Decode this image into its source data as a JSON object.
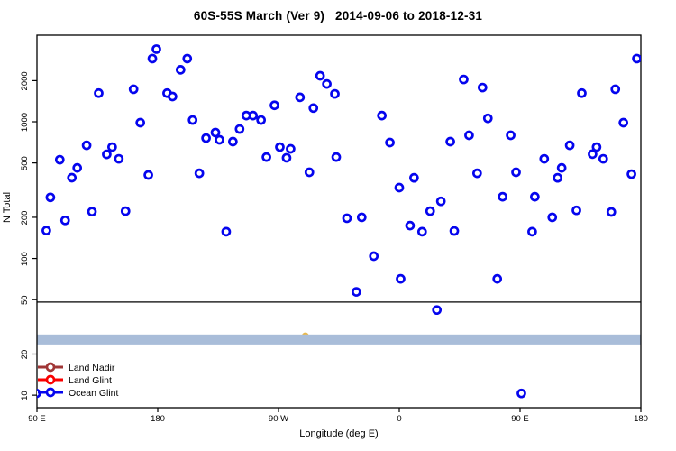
{
  "page": {
    "background": "#ffffff"
  },
  "chart_data": {
    "type": "scatter",
    "title": "60S-55S March (Ver 9)   2014-09-06 to 2018-12-31",
    "xlabel": "Longitude (deg E)",
    "ylabel": "N Total",
    "x_scale": "linear",
    "y_scale": "log",
    "xlim": [
      90,
      540
    ],
    "ylim": [
      8.1,
      4300
    ],
    "grid": false,
    "x_ticks": [
      {
        "value": 90,
        "label": "90 E"
      },
      {
        "value": 180,
        "label": "180"
      },
      {
        "value": 270,
        "label": "90 W"
      },
      {
        "value": 360,
        "label": "0"
      },
      {
        "value": 450,
        "label": "90 E"
      },
      {
        "value": 540,
        "label": "180"
      }
    ],
    "y_ticks": [
      {
        "value": 10,
        "label": "10"
      },
      {
        "value": 20,
        "label": "20"
      },
      {
        "value": 50,
        "label": "50"
      },
      {
        "value": 100,
        "label": "100"
      },
      {
        "value": 200,
        "label": "200"
      },
      {
        "value": 500,
        "label": "500"
      },
      {
        "value": 1000,
        "label": "1000"
      },
      {
        "value": 2000,
        "label": "2000"
      }
    ],
    "reference_line": {
      "y": 48,
      "color": "#2a2a2a"
    },
    "band": {
      "y_from": 23.5,
      "y_to": 27.8,
      "color": "#a9bdd9"
    },
    "artifact_points": [
      {
        "x": 290,
        "y": 27,
        "color": "#e8b84b"
      }
    ],
    "legend": {
      "position": "bottom-left",
      "items": [
        {
          "label": "Land Nadir",
          "color": "#a03636"
        },
        {
          "label": "Land Glint",
          "color": "#fa0000"
        },
        {
          "label": "Ocean Glint",
          "color": "#0505ee"
        }
      ]
    },
    "series": [
      {
        "name": "Ocean Glint",
        "marker": "open-circle",
        "color": "#0505ee",
        "points": [
          [
            179,
            3400
          ],
          [
            176,
            2900
          ],
          [
            202,
            2900
          ],
          [
            197,
            2400
          ],
          [
            301,
            2170
          ],
          [
            306,
            1890
          ],
          [
            312,
            1600
          ],
          [
            136,
            1620
          ],
          [
            162,
            1730
          ],
          [
            187,
            1620
          ],
          [
            191,
            1530
          ],
          [
            286,
            1510
          ],
          [
            296,
            1260
          ],
          [
            267,
            1320
          ],
          [
            167,
            985
          ],
          [
            206,
            1030
          ],
          [
            257,
            1030
          ],
          [
            251,
            1110
          ],
          [
            246,
            1110
          ],
          [
            241,
            885
          ],
          [
            223,
            834
          ],
          [
            216,
            760
          ],
          [
            226,
            738
          ],
          [
            236,
            716
          ],
          [
            127,
            673
          ],
          [
            146,
            653
          ],
          [
            142,
            578
          ],
          [
            151,
            536
          ],
          [
            107,
            528
          ],
          [
            120,
            460
          ],
          [
            116,
            390
          ],
          [
            173,
            408
          ],
          [
            211,
            420
          ],
          [
            271,
            653
          ],
          [
            279,
            634
          ],
          [
            276,
            545
          ],
          [
            261,
            552
          ],
          [
            313,
            552
          ],
          [
            293,
            427
          ],
          [
            100,
            280
          ],
          [
            111,
            190
          ],
          [
            131,
            220
          ],
          [
            156,
            222
          ],
          [
            537,
            2900
          ],
          [
            408,
            2040
          ],
          [
            422,
            1780
          ],
          [
            496,
            1620
          ],
          [
            521,
            1730
          ],
          [
            347,
            1110
          ],
          [
            426,
            1060
          ],
          [
            527,
            985
          ],
          [
            353,
            705
          ],
          [
            398,
            716
          ],
          [
            412,
            796
          ],
          [
            443,
            796
          ],
          [
            487,
            673
          ],
          [
            504,
            580
          ],
          [
            507,
            653
          ],
          [
            512,
            536
          ],
          [
            468,
            536
          ],
          [
            481,
            460
          ],
          [
            478,
            389
          ],
          [
            533,
            414
          ],
          [
            418,
            420
          ],
          [
            447,
            427
          ],
          [
            371,
            389
          ],
          [
            360,
            330
          ],
          [
            437,
            283
          ],
          [
            461,
            283
          ],
          [
            391,
            262
          ],
          [
            383,
            222
          ],
          [
            492,
            225
          ],
          [
            518,
            219
          ],
          [
            321,
            197
          ],
          [
            332,
            200
          ],
          [
            474,
            200
          ],
          [
            97,
            160
          ],
          [
            231,
            157
          ],
          [
            368,
            174
          ],
          [
            377,
            157
          ],
          [
            401,
            159
          ],
          [
            459,
            157
          ],
          [
            341,
            104
          ],
          [
            361,
            71
          ],
          [
            433,
            71
          ],
          [
            328,
            57
          ],
          [
            388,
            42
          ],
          [
            451,
            10.3
          ],
          [
            89.5,
            10.3
          ]
        ]
      },
      {
        "name": "Land Nadir",
        "marker": "open-circle",
        "color": "#a03636",
        "points": []
      },
      {
        "name": "Land Glint",
        "marker": "open-circle",
        "color": "#fa0000",
        "points": []
      }
    ]
  }
}
